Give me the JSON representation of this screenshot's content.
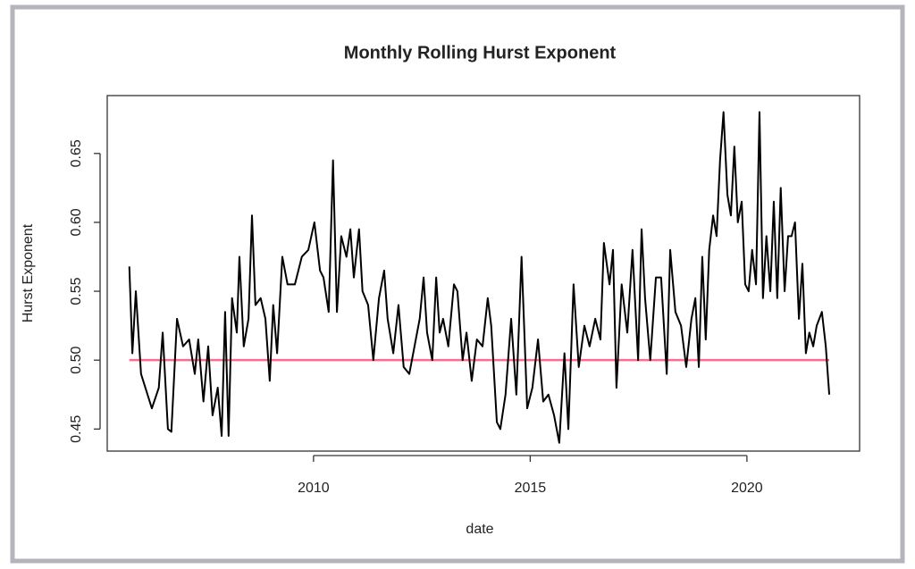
{
  "chart_data": {
    "type": "line",
    "title": "Monthly Rolling Hurst Exponent",
    "x_label": "date",
    "y_label": "Hurst Exponent",
    "xlim": [
      2005.24,
      2022.6
    ],
    "ylim": [
      0.434,
      0.692
    ],
    "xticks": [
      2010,
      2015,
      2020
    ],
    "yticks": [
      0.45,
      {
        "value": 0.5,
        "label": "0.50"
      },
      0.55,
      {
        "value": 0.6,
        "label": "0.60"
      },
      0.65
    ],
    "reference_line": {
      "value": 0.5,
      "color": "#ff6b8e"
    },
    "series": [
      {
        "color": "#000000",
        "x": [
          2005.75,
          2005.82,
          2005.9,
          2006.02,
          2006.17,
          2006.27,
          2006.43,
          2006.52,
          2006.64,
          2006.72,
          2006.85,
          2006.99,
          2007.13,
          2007.26,
          2007.34,
          2007.46,
          2007.57,
          2007.67,
          2007.79,
          2007.88,
          2007.96,
          2008.04,
          2008.12,
          2008.23,
          2008.29,
          2008.39,
          2008.5,
          2008.58,
          2008.66,
          2008.78,
          2008.89,
          2008.99,
          2009.07,
          2009.16,
          2009.28,
          2009.4,
          2009.57,
          2009.73,
          2009.88,
          2010.02,
          2010.15,
          2010.23,
          2010.35,
          2010.45,
          2010.54,
          2010.64,
          2010.76,
          2010.85,
          2010.93,
          2011.05,
          2011.13,
          2011.26,
          2011.38,
          2011.51,
          2011.63,
          2011.71,
          2011.84,
          2011.96,
          2012.08,
          2012.21,
          2012.33,
          2012.45,
          2012.54,
          2012.62,
          2012.74,
          2012.83,
          2012.91,
          2012.99,
          2013.11,
          2013.24,
          2013.32,
          2013.44,
          2013.53,
          2013.65,
          2013.77,
          2013.9,
          2014.02,
          2014.1,
          2014.23,
          2014.31,
          2014.43,
          2014.56,
          2014.68,
          2014.8,
          2014.93,
          2015.05,
          2015.18,
          2015.3,
          2015.42,
          2015.55,
          2015.67,
          2015.79,
          2015.88,
          2016.0,
          2016.12,
          2016.25,
          2016.37,
          2016.5,
          2016.62,
          2016.7,
          2016.83,
          2016.91,
          2016.99,
          2017.11,
          2017.24,
          2017.36,
          2017.49,
          2017.57,
          2017.65,
          2017.77,
          2017.9,
          2018.02,
          2018.15,
          2018.23,
          2018.35,
          2018.48,
          2018.6,
          2018.72,
          2018.81,
          2018.89,
          2018.97,
          2019.05,
          2019.13,
          2019.22,
          2019.3,
          2019.38,
          2019.46,
          2019.55,
          2019.63,
          2019.71,
          2019.79,
          2019.88,
          2019.96,
          2020.04,
          2020.12,
          2020.21,
          2020.29,
          2020.37,
          2020.45,
          2020.54,
          2020.62,
          2020.7,
          2020.78,
          2020.87,
          2020.95,
          2021.03,
          2021.11,
          2021.2,
          2021.28,
          2021.36,
          2021.44,
          2021.53,
          2021.61,
          2021.73,
          2021.82,
          2021.9
        ],
        "values": [
          0.568,
          0.505,
          0.55,
          0.49,
          0.475,
          0.465,
          0.48,
          0.52,
          0.45,
          0.448,
          0.53,
          0.51,
          0.515,
          0.49,
          0.515,
          0.47,
          0.51,
          0.46,
          0.48,
          0.445,
          0.535,
          0.445,
          0.545,
          0.52,
          0.575,
          0.51,
          0.53,
          0.605,
          0.54,
          0.545,
          0.53,
          0.485,
          0.54,
          0.505,
          0.575,
          0.555,
          0.555,
          0.575,
          0.58,
          0.6,
          0.565,
          0.56,
          0.535,
          0.645,
          0.535,
          0.59,
          0.575,
          0.595,
          0.56,
          0.595,
          0.55,
          0.54,
          0.5,
          0.545,
          0.565,
          0.53,
          0.505,
          0.54,
          0.495,
          0.49,
          0.51,
          0.53,
          0.56,
          0.52,
          0.5,
          0.56,
          0.52,
          0.53,
          0.51,
          0.555,
          0.55,
          0.5,
          0.52,
          0.485,
          0.515,
          0.51,
          0.545,
          0.525,
          0.455,
          0.45,
          0.475,
          0.53,
          0.475,
          0.575,
          0.465,
          0.48,
          0.515,
          0.47,
          0.475,
          0.46,
          0.44,
          0.505,
          0.45,
          0.555,
          0.495,
          0.525,
          0.51,
          0.53,
          0.515,
          0.585,
          0.555,
          0.58,
          0.48,
          0.555,
          0.52,
          0.58,
          0.5,
          0.595,
          0.545,
          0.5,
          0.56,
          0.56,
          0.49,
          0.58,
          0.535,
          0.525,
          0.495,
          0.53,
          0.545,
          0.495,
          0.575,
          0.515,
          0.58,
          0.605,
          0.59,
          0.645,
          0.68,
          0.62,
          0.605,
          0.655,
          0.6,
          0.615,
          0.555,
          0.55,
          0.58,
          0.555,
          0.68,
          0.545,
          0.59,
          0.55,
          0.615,
          0.545,
          0.625,
          0.55,
          0.59,
          0.59,
          0.6,
          0.53,
          0.57,
          0.505,
          0.52,
          0.51,
          0.525,
          0.535,
          0.51,
          0.475
        ]
      }
    ]
  }
}
